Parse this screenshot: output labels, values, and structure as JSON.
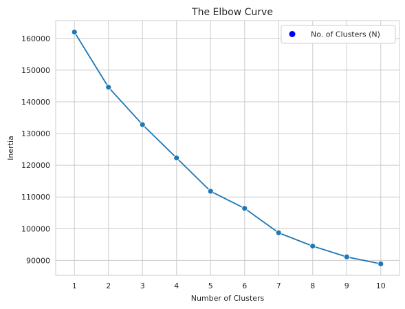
{
  "chart_data": {
    "type": "line",
    "title": "The Elbow Curve",
    "xlabel": "Number of Clusters",
    "ylabel": "Inertia",
    "x": [
      1,
      2,
      3,
      4,
      5,
      6,
      7,
      8,
      9,
      10
    ],
    "series": [
      {
        "name": "No. of Clusters (N)",
        "values": [
          162000,
          144600,
          132800,
          122300,
          111800,
          106400,
          98700,
          94500,
          91100,
          88900
        ]
      }
    ],
    "xlim": [
      0.45,
      10.55
    ],
    "ylim": [
      85300,
      165600
    ],
    "xticks": [
      1,
      2,
      3,
      4,
      5,
      6,
      7,
      8,
      9,
      10
    ],
    "yticks": [
      90000,
      100000,
      110000,
      120000,
      130000,
      140000,
      150000,
      160000
    ],
    "grid": true,
    "legend_position": "top-right",
    "colors": {
      "line": "#1f77b4",
      "legend_marker": "#0000ff",
      "grid": "#cccccc",
      "frame": "#cccccc"
    }
  }
}
